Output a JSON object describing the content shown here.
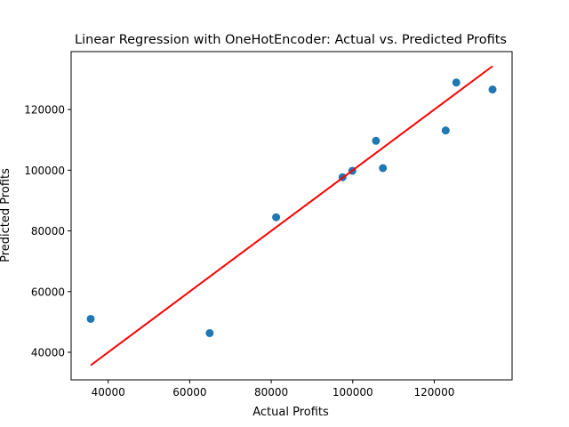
{
  "chart_data": {
    "type": "scatter",
    "title": "Linear Regression with OneHotEncoder: Actual vs. Predicted Profits",
    "xlabel": "Actual Profits",
    "ylabel": "Predicted Profits",
    "xlim": [
      30900,
      139100
    ],
    "ylim": [
      30900,
      139100
    ],
    "xticks": [
      40000,
      60000,
      80000,
      100000,
      120000
    ],
    "yticks": [
      40000,
      60000,
      80000,
      100000,
      120000
    ],
    "grid": false,
    "series": [
      {
        "kind": "scatter",
        "color": "#1f77b4",
        "points": [
          [
            35700,
            51000
          ],
          [
            64900,
            46300
          ],
          [
            81200,
            84500
          ],
          [
            97500,
            97700
          ],
          [
            99900,
            99800
          ],
          [
            105700,
            109700
          ],
          [
            107400,
            100700
          ],
          [
            122800,
            113100
          ],
          [
            125400,
            128900
          ],
          [
            134300,
            126600
          ]
        ]
      },
      {
        "kind": "line",
        "color": "#ff0000",
        "points": [
          [
            35700,
            35700
          ],
          [
            134300,
            134300
          ]
        ]
      }
    ]
  }
}
